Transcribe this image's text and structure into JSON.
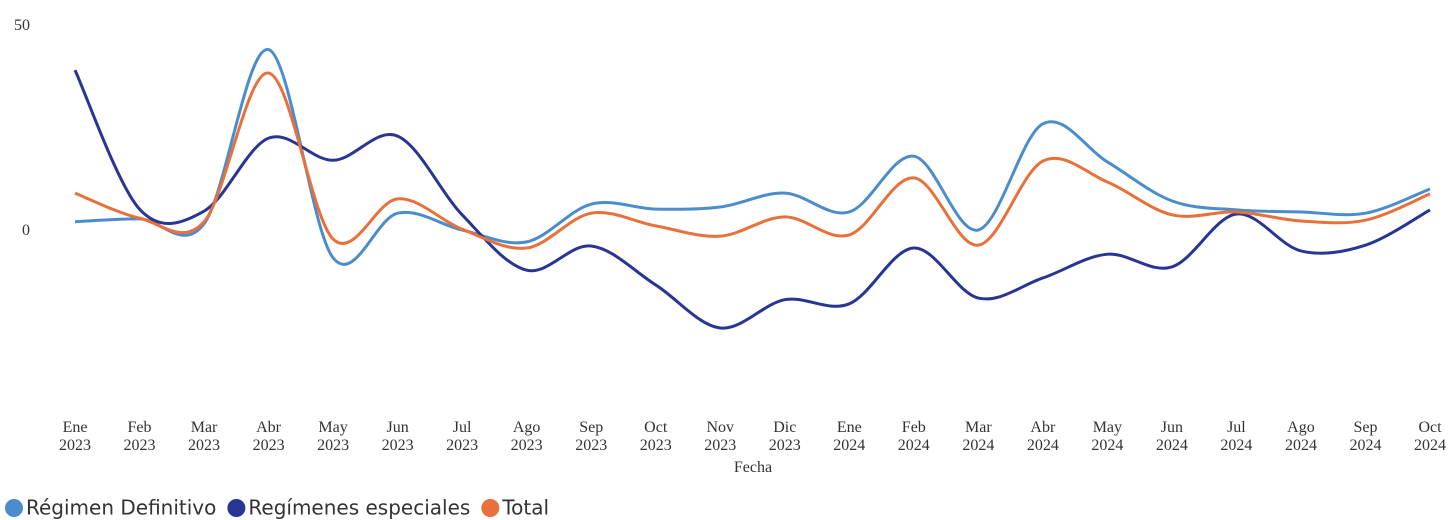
{
  "chart_data": {
    "type": "line",
    "x_label": "Fecha",
    "categories": [
      "Ene 2023",
      "Feb 2023",
      "Mar 2023",
      "Abr 2023",
      "May 2023",
      "Jun 2023",
      "Jul 2023",
      "Ago 2023",
      "Sep 2023",
      "Oct 2023",
      "Nov 2023",
      "Dic 2023",
      "Ene 2024",
      "Feb 2024",
      "Mar 2024",
      "Abr 2024",
      "May 2024",
      "Jun 2024",
      "Jul 2024",
      "Ago 2024",
      "Sep 2024",
      "Oct 2024"
    ],
    "series": [
      {
        "name": "Régimen Definitivo",
        "color": "#4a8ccc",
        "values": [
          2,
          2.7,
          1.5,
          44,
          -6.8,
          4.1,
          0,
          -2.9,
          6.3,
          5.1,
          5.6,
          9,
          4.4,
          18,
          0,
          25.9,
          16.6,
          7.1,
          4.9,
          4.4,
          4.1,
          10
        ]
      },
      {
        "name": "Regímenes especiales",
        "color": "#283593",
        "values": [
          39,
          5.1,
          4.6,
          22.4,
          17,
          22.9,
          3.7,
          -9.8,
          -3.9,
          -13.4,
          -23.9,
          -17,
          -18,
          -4.4,
          -16.6,
          -11.7,
          -5.9,
          -9,
          3.9,
          -5.1,
          -3.7,
          4.9
        ]
      },
      {
        "name": "Total",
        "color": "#e8703a",
        "values": [
          9,
          2.9,
          2,
          38.3,
          -2.2,
          7.6,
          0.2,
          -4.4,
          4.1,
          1,
          -1.5,
          3.2,
          -1.2,
          12.7,
          -3.7,
          16.8,
          11.7,
          3.7,
          4.4,
          2.2,
          2.4,
          8.8
        ]
      }
    ],
    "ylim": [
      -40,
      50
    ],
    "yticks": [
      0,
      50
    ],
    "grid": false,
    "legend": "bottom-left"
  }
}
